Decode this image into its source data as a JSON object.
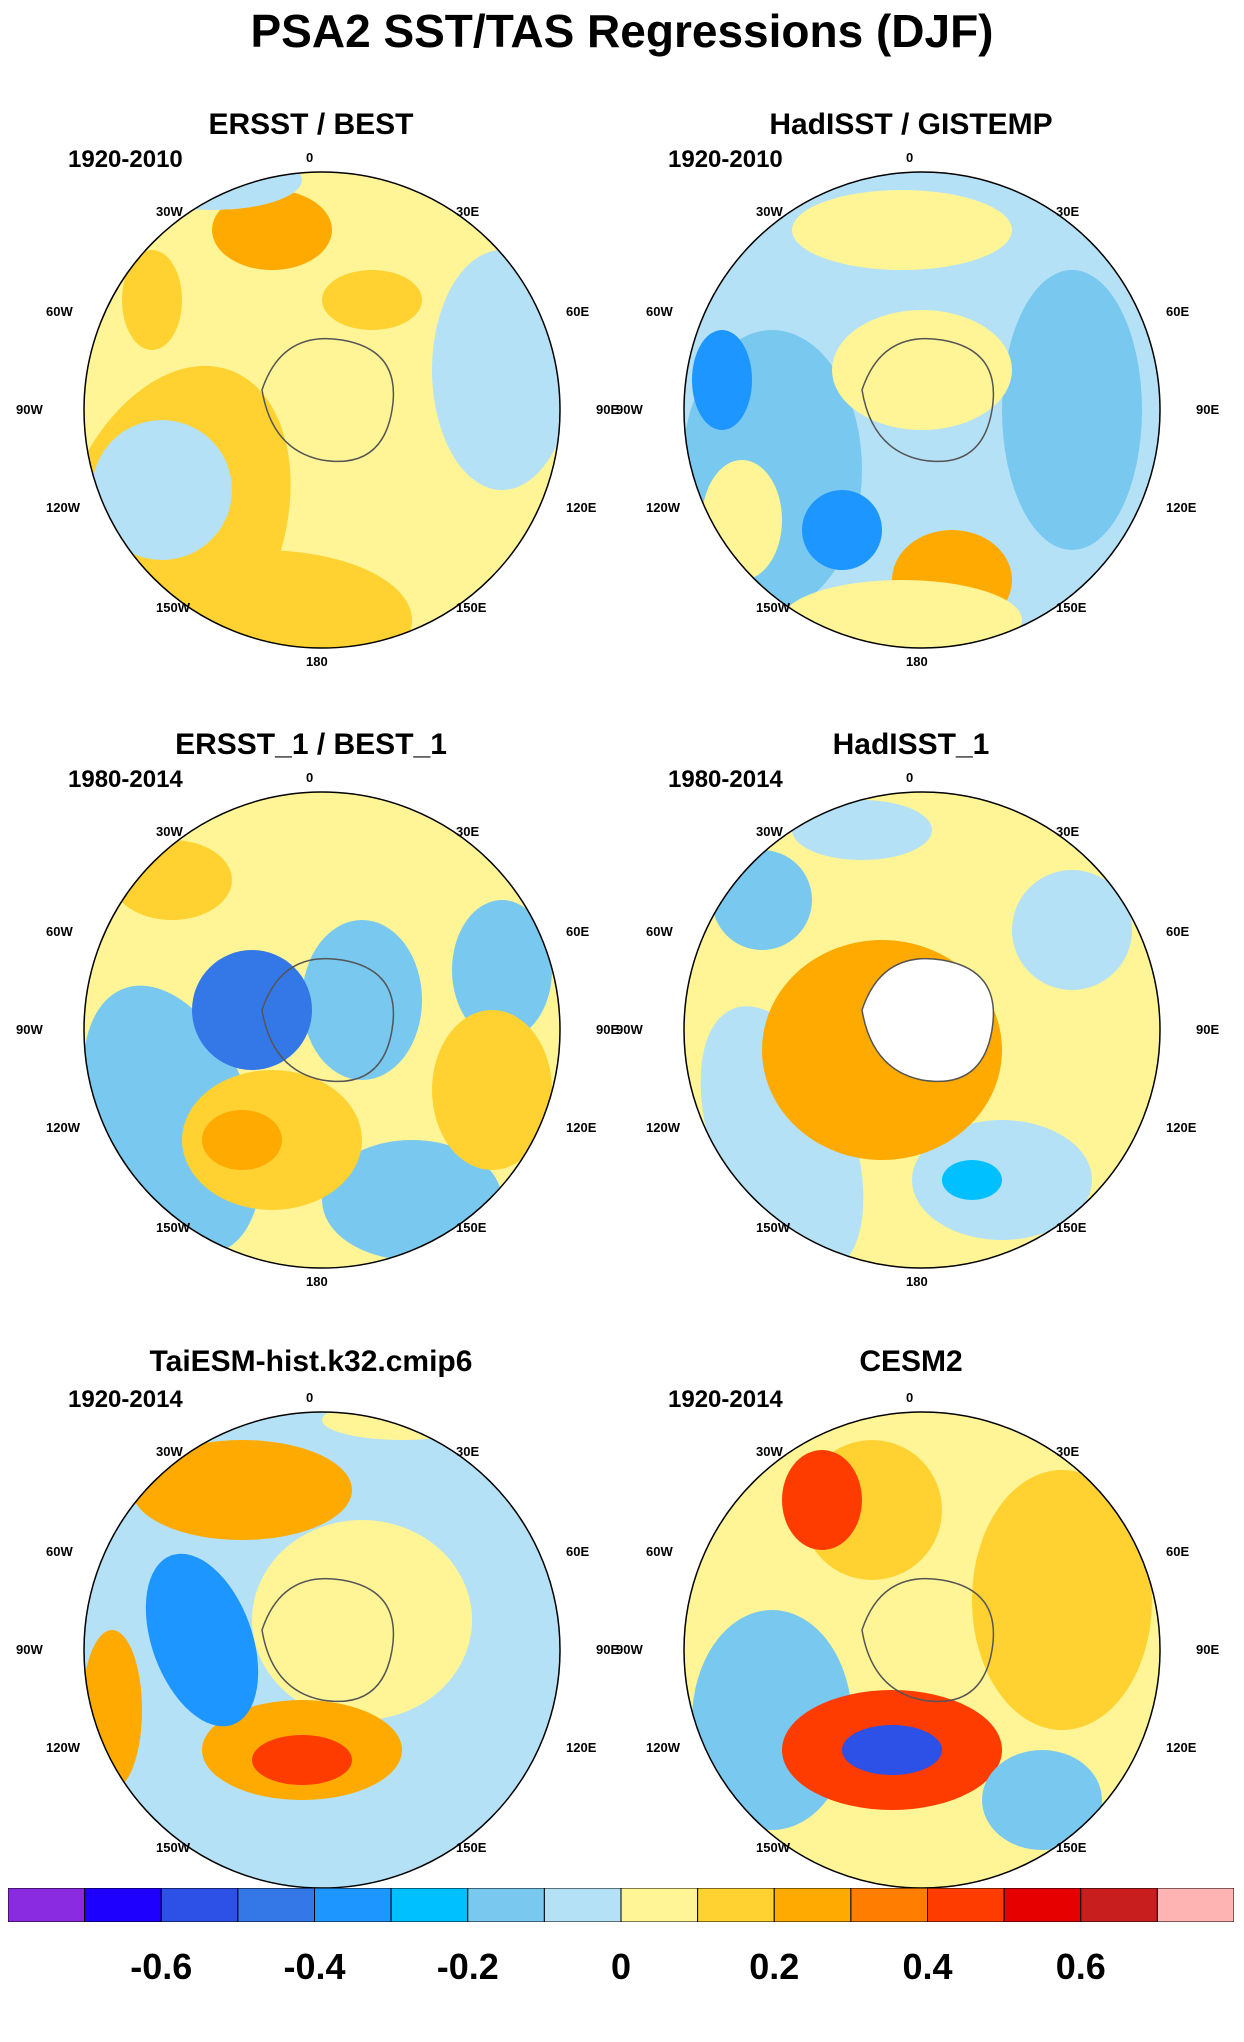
{
  "title": "PSA2 SST/TAS Regressions (DJF)",
  "longitude_labels": {
    "top": "0",
    "bottom": "180",
    "30W": "30W",
    "60W": "60W",
    "90W": "90W",
    "120W": "120W",
    "150W": "150W",
    "30E": "30E",
    "60E": "60E",
    "90E": "90E",
    "120E": "120E",
    "150E": "150E"
  },
  "colorbar": {
    "colors": [
      "#8a2be2",
      "#1e00ff",
      "#2d50e6",
      "#3478e8",
      "#1e96ff",
      "#00c0ff",
      "#78c8f0",
      "#b4e1f5",
      "#fff596",
      "#ffd232",
      "#ffaa00",
      "#ff7d00",
      "#ff3c00",
      "#e60000",
      "#c81e1e",
      "#ffb4b4"
    ],
    "tick_labels": [
      "-0.6",
      "-0.4",
      "-0.2",
      "0",
      "0.2",
      "0.4",
      "0.6"
    ]
  },
  "chart_data": [
    {
      "type": "heatmap",
      "title": "ERSST / BEST",
      "period": "1920-2010",
      "projection": "south polar stereographic",
      "regions": [
        {
          "level": 0.1,
          "color": "#fff596"
        },
        {
          "level": 0.2,
          "color": "#ffd232"
        },
        {
          "level": 0.3,
          "color": "#ffaa00"
        },
        {
          "level": -0.05,
          "color": "#b4e1f5"
        }
      ]
    },
    {
      "type": "heatmap",
      "title": "HadISST / GISTEMP",
      "period": "1920-2010",
      "projection": "south polar stereographic",
      "regions": [
        {
          "level": -0.05,
          "color": "#b4e1f5"
        },
        {
          "level": -0.15,
          "color": "#78c8f0"
        },
        {
          "level": 0.1,
          "color": "#fff596"
        },
        {
          "level": 0.3,
          "color": "#ffaa00"
        },
        {
          "level": -0.3,
          "color": "#1e96ff"
        }
      ]
    },
    {
      "type": "heatmap",
      "title": "ERSST_1 / BEST_1",
      "period": "1980-2014",
      "projection": "south polar stereographic",
      "regions": [
        {
          "level": 0.1,
          "color": "#fff596"
        },
        {
          "level": -0.15,
          "color": "#78c8f0"
        },
        {
          "level": 0.2,
          "color": "#ffd232"
        },
        {
          "level": -0.4,
          "color": "#3478e8"
        },
        {
          "level": 0.3,
          "color": "#ffaa00"
        }
      ]
    },
    {
      "type": "heatmap",
      "title": "HadISST_1",
      "period": "1980-2014",
      "projection": "south polar stereographic",
      "regions": [
        {
          "level": 0.1,
          "color": "#fff596"
        },
        {
          "level": -0.05,
          "color": "#b4e1f5"
        },
        {
          "level": -0.15,
          "color": "#78c8f0"
        },
        {
          "level": 0.3,
          "color": "#ffaa00"
        },
        {
          "level": -0.25,
          "color": "#00c0ff"
        }
      ]
    },
    {
      "type": "heatmap",
      "title": "TaiESM-hist.k32.cmip6",
      "period": "1920-2014",
      "projection": "south polar stereographic",
      "regions": [
        {
          "level": -0.05,
          "color": "#b4e1f5"
        },
        {
          "level": 0.1,
          "color": "#fff596"
        },
        {
          "level": 0.3,
          "color": "#ffaa00"
        },
        {
          "level": 0.45,
          "color": "#ff3c00"
        },
        {
          "level": -0.3,
          "color": "#1e96ff"
        }
      ]
    },
    {
      "type": "heatmap",
      "title": "CESM2",
      "period": "1920-2014",
      "projection": "south polar stereographic",
      "regions": [
        {
          "level": 0.1,
          "color": "#fff596"
        },
        {
          "level": 0.2,
          "color": "#ffd232"
        },
        {
          "level": 0.45,
          "color": "#ff3c00"
        },
        {
          "level": -0.45,
          "color": "#2d50e6"
        },
        {
          "level": -0.15,
          "color": "#78c8f0"
        }
      ]
    }
  ]
}
